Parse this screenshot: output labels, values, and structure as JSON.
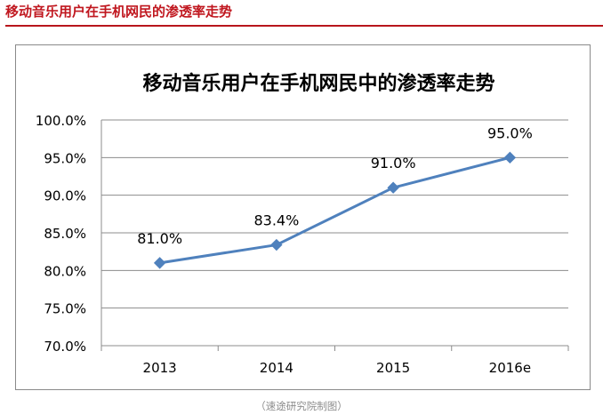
{
  "header": {
    "title": "移动音乐用户在手机网民的渗透率走势"
  },
  "source_note": "（速途研究院制图）",
  "colors": {
    "accent": "#c0171f",
    "series": "#4f81bd",
    "gridline": "#8c8c8c"
  },
  "chart_data": {
    "type": "line",
    "title": "移动音乐用户在手机网民中的渗透率走势",
    "categories": [
      "2013",
      "2014",
      "2015",
      "2016e"
    ],
    "series": [
      {
        "values": [
          81.0,
          83.4,
          91.0,
          95.0
        ],
        "labels": [
          "81.0%",
          "83.4%",
          "91.0%",
          "95.0%"
        ],
        "marker": "diamond"
      }
    ],
    "ylim": [
      70,
      100
    ],
    "yticks": [
      70,
      75,
      80,
      85,
      90,
      95,
      100
    ],
    "ytick_labels": [
      "70.0%",
      "75.0%",
      "80.0%",
      "85.0%",
      "90.0%",
      "95.0%",
      "100.0%"
    ],
    "xlabel": "",
    "ylabel": "",
    "grid": true,
    "legend": "none"
  }
}
